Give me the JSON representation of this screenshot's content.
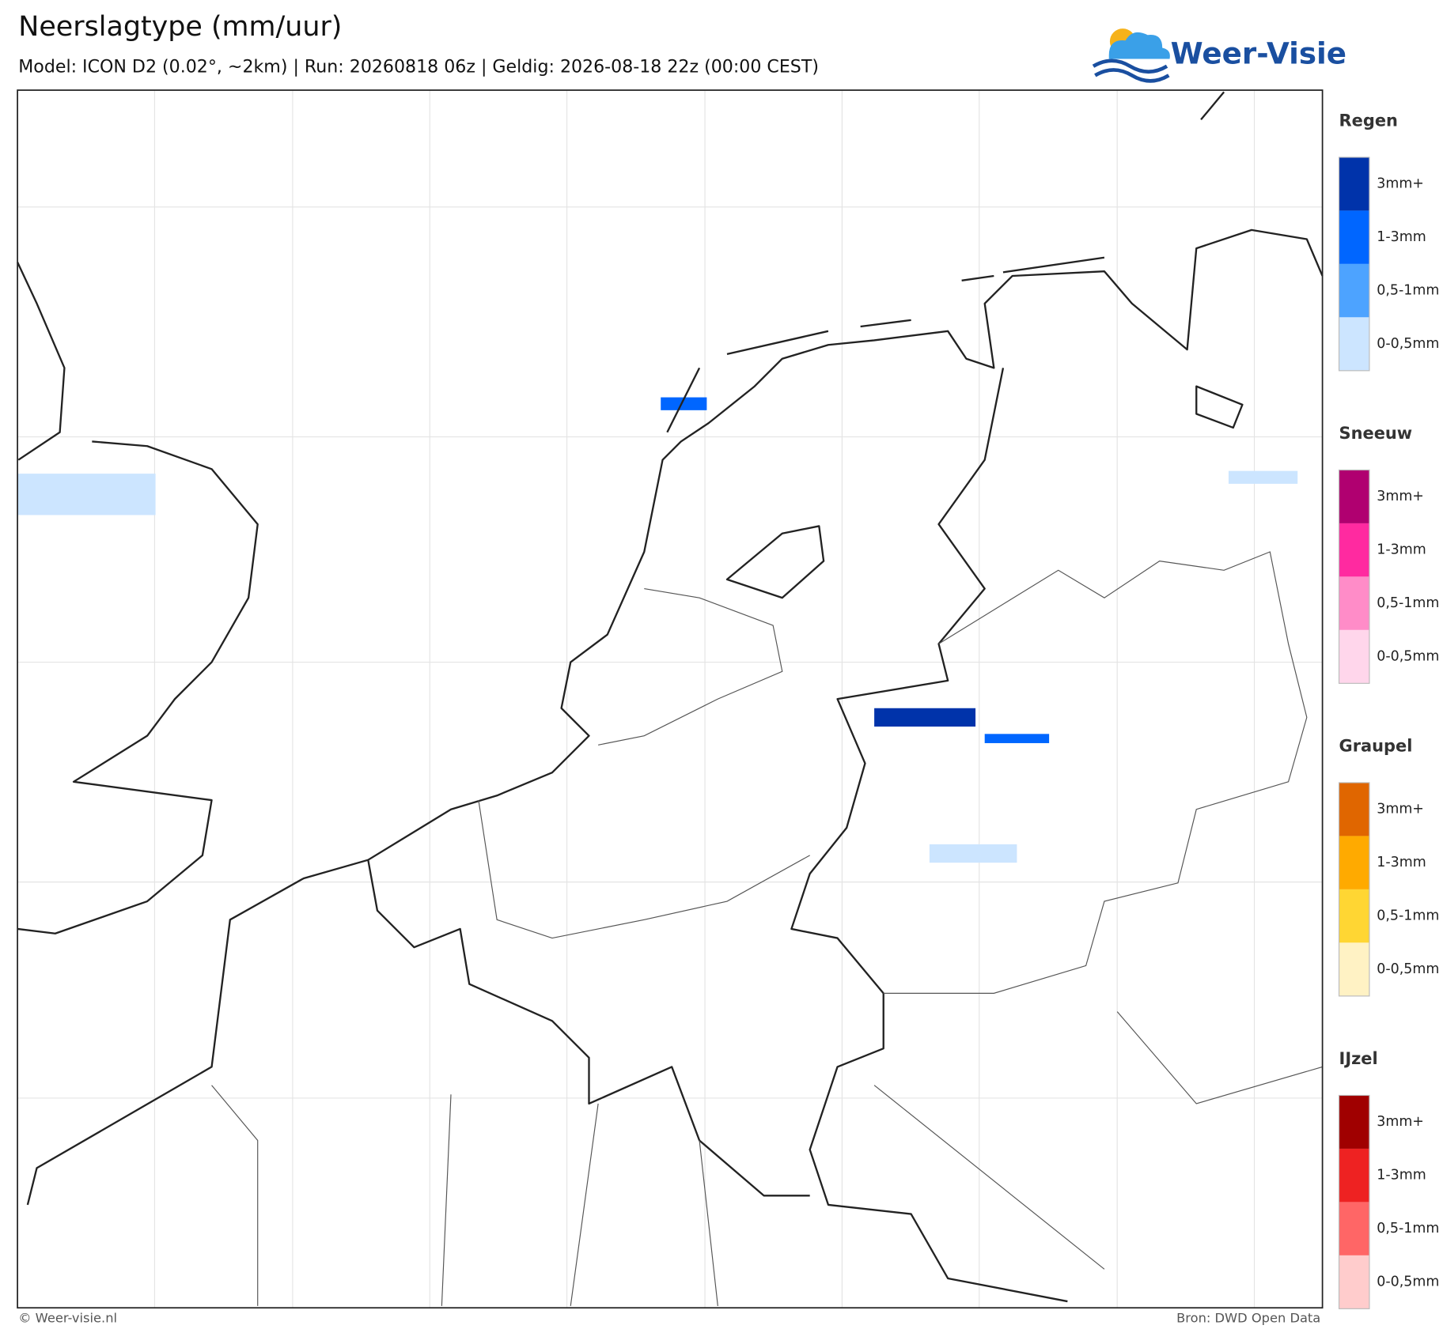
{
  "header": {
    "title": "Neerslagtype (mm/uur)",
    "subtitle": "Model: ICON D2 (0.02°, ~2km)  |  Run: 20260818 06z  |  Geldig: 2026-08-18 22z (00:00 CEST)"
  },
  "logo": {
    "text": "Weer-Visie"
  },
  "legend": {
    "groups": [
      {
        "title": "Regen",
        "items": [
          {
            "label": "3mm+",
            "color": "#0033aa"
          },
          {
            "label": "1-3mm",
            "color": "#0066ff"
          },
          {
            "label": "0,5-1mm",
            "color": "#4da3ff"
          },
          {
            "label": "0-0,5mm",
            "color": "#cce5ff"
          }
        ]
      },
      {
        "title": "Sneeuw",
        "items": [
          {
            "label": "3mm+",
            "color": "#b00070"
          },
          {
            "label": "1-3mm",
            "color": "#ff2aa0"
          },
          {
            "label": "0,5-1mm",
            "color": "#ff8cc8"
          },
          {
            "label": "0-0,5mm",
            "color": "#ffd6eb"
          }
        ]
      },
      {
        "title": "Graupel",
        "items": [
          {
            "label": "3mm+",
            "color": "#e06600"
          },
          {
            "label": "1-3mm",
            "color": "#ffaa00"
          },
          {
            "label": "0,5-1mm",
            "color": "#ffd633"
          },
          {
            "label": "0-0,5mm",
            "color": "#fff2c4"
          }
        ]
      },
      {
        "title": "IJzel",
        "items": [
          {
            "label": "3mm+",
            "color": "#a00000"
          },
          {
            "label": "1-3mm",
            "color": "#ee2222"
          },
          {
            "label": "0,5-1mm",
            "color": "#ff6666"
          },
          {
            "label": "0-0,5mm",
            "color": "#ffcccc"
          }
        ]
      }
    ]
  },
  "footer": {
    "left": "© Weer-visie.nl",
    "right": "Bron: DWD Open Data"
  }
}
